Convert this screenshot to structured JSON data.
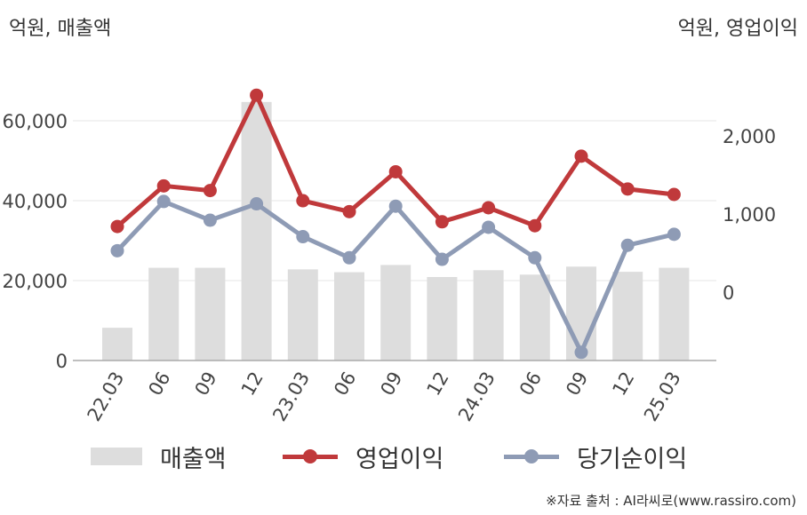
{
  "units": {
    "left": "억원, 매출액",
    "right": "억원, 영업이익"
  },
  "legend": {
    "bar": "매출액",
    "line1": "영업이익",
    "line2": "당기순이익"
  },
  "source": "※자료 출처 : AI라씨로(www.rassiro.com)",
  "colors": {
    "bar": "#dddddd",
    "operating_profit": "#c0393b",
    "net_income": "#8e9bb5"
  },
  "chart_data": {
    "type": "bar",
    "categories": [
      "22.03",
      "06",
      "09",
      "12",
      "23.03",
      "06",
      "09",
      "12",
      "24.03",
      "06",
      "09",
      "12",
      "25.03"
    ],
    "series": [
      {
        "name": "매출액",
        "type": "bar",
        "axis": "left",
        "values": [
          8200,
          23200,
          23200,
          64700,
          22800,
          22100,
          23900,
          20900,
          22600,
          21500,
          23500,
          22200,
          23200
        ]
      },
      {
        "name": "영업이익",
        "type": "line",
        "axis": "right",
        "values": [
          840,
          1360,
          1300,
          2520,
          1170,
          1030,
          1540,
          900,
          1080,
          850,
          1740,
          1320,
          1250
        ]
      },
      {
        "name": "당기순이익",
        "type": "line",
        "axis": "right",
        "values": [
          530,
          1160,
          920,
          1130,
          710,
          440,
          1100,
          420,
          830,
          440,
          -770,
          600,
          740
        ]
      }
    ],
    "y_left": {
      "ticks": [
        0,
        20000,
        40000,
        60000
      ],
      "tick_labels": [
        "0",
        "20,000",
        "40,000",
        "60,000"
      ]
    },
    "y_right": {
      "ticks": [
        0,
        1000,
        2000
      ],
      "tick_labels": [
        "0",
        "1,000",
        "2,000"
      ]
    },
    "grid": true,
    "legend_position": "bottom"
  }
}
